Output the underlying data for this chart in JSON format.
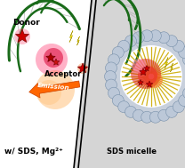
{
  "bg_color": "#f0f0f0",
  "left_bg": "#ffffff",
  "right_bg": "#d0d0d0",
  "dna_color": "#1a6b1a",
  "donor_label": "Donor",
  "acceptor_label": "Acceptor",
  "emission_label": "Emission",
  "bottom_left_label": "w/ SDS, Mg²⁺",
  "bottom_right_label": "SDS micelle",
  "arrow_color": "#ff6600",
  "lightning_color": "#ffee00",
  "star_red": "#cc0000",
  "star_dark": "#880000",
  "micelle_surface_color": "#b0baca",
  "micelle_edge_color": "#8090a8",
  "tail_color": "#ccaa00",
  "glow_red": "#dd2020",
  "glow_pink": "#ff88cc"
}
